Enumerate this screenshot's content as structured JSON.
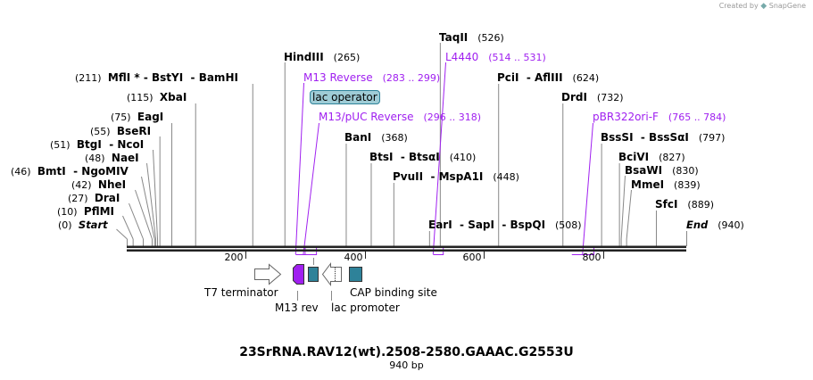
{
  "credit": {
    "prefix": "Created by",
    "brand": "SnapGene"
  },
  "title": "23SrRNA.RAV12(wt).2508-2580.GAAAC.G2553U",
  "length_label": "940 bp",
  "sequence_length": 940,
  "ruler_ticks": [
    {
      "bp": 200,
      "label": "200"
    },
    {
      "bp": 400,
      "label": "400"
    },
    {
      "bp": 600,
      "label": "600"
    },
    {
      "bp": 800,
      "label": "800"
    }
  ],
  "sites": [
    {
      "name": "Start",
      "pos": "(0)",
      "bp": 0,
      "italic": true
    },
    {
      "name": "PflMI",
      "pos": "(10)",
      "bp": 10
    },
    {
      "name": "DraI",
      "pos": "(27)",
      "bp": 27
    },
    {
      "name": "NheI",
      "pos": "(42)",
      "bp": 42
    },
    {
      "name": "BmtI  - NgoMIV",
      "pos": "(46)",
      "bp": 46
    },
    {
      "name": "NaeI",
      "pos": "(48)",
      "bp": 48
    },
    {
      "name": "BtgI  - NcoI",
      "pos": "(51)",
      "bp": 51
    },
    {
      "name": "BseRI",
      "pos": "(55)",
      "bp": 55
    },
    {
      "name": "EagI",
      "pos": "(75)",
      "bp": 75
    },
    {
      "name": "XbaI",
      "pos": "(115)",
      "bp": 115
    },
    {
      "name": "MflI * - BstYI  - BamHI",
      "pos": "(211)",
      "bp": 211
    },
    {
      "name": "HindIII",
      "pos": "(265)",
      "bp": 265
    },
    {
      "name": "BanI",
      "pos": "(368)",
      "bp": 368
    },
    {
      "name": "BtsI  - BtsαI",
      "pos": "(410)",
      "bp": 410
    },
    {
      "name": "PvuII  - MspA1I",
      "pos": "(448)",
      "bp": 448
    },
    {
      "name": "EarI  - SapI  - BspQI",
      "pos": "(508)",
      "bp": 508
    },
    {
      "name": "TaqII",
      "pos": "(526)",
      "bp": 526
    },
    {
      "name": "PciI  - AflIII",
      "pos": "(624)",
      "bp": 624
    },
    {
      "name": "DrdI",
      "pos": "(732)",
      "bp": 732
    },
    {
      "name": "BssSI  - BssSαI",
      "pos": "(797)",
      "bp": 797
    },
    {
      "name": "BciVI",
      "pos": "(827)",
      "bp": 827
    },
    {
      "name": "BsaWI",
      "pos": "(830)",
      "bp": 830
    },
    {
      "name": "MmeI",
      "pos": "(839)",
      "bp": 839
    },
    {
      "name": "SfcI",
      "pos": "(889)",
      "bp": 889
    },
    {
      "name": "End",
      "pos": "(940)",
      "bp": 940,
      "italic": true
    }
  ],
  "primers": [
    {
      "name": "M13 Reverse",
      "range": "(283 .. 299)",
      "start": 283,
      "end": 299
    },
    {
      "name": "M13/pUC Reverse",
      "range": "(296 .. 318)",
      "start": 296,
      "end": 318
    },
    {
      "name": "L4440",
      "range": "(514 .. 531)",
      "start": 514,
      "end": 531
    },
    {
      "name": "pBR322ori-F",
      "range": "(765 .. 784)",
      "start": 765,
      "end": 784
    }
  ],
  "features": {
    "lac_operator": "lac operator",
    "t7_terminator": "T7 terminator",
    "m13_rev": "M13 rev",
    "lac_promoter": "lac promoter",
    "cap_site": "CAP binding site"
  },
  "colors": {
    "primer": "#a020f0",
    "feature_teal": "#2e8299",
    "lac_operator_fill": "#9fccd6",
    "site_line": "#808080"
  }
}
